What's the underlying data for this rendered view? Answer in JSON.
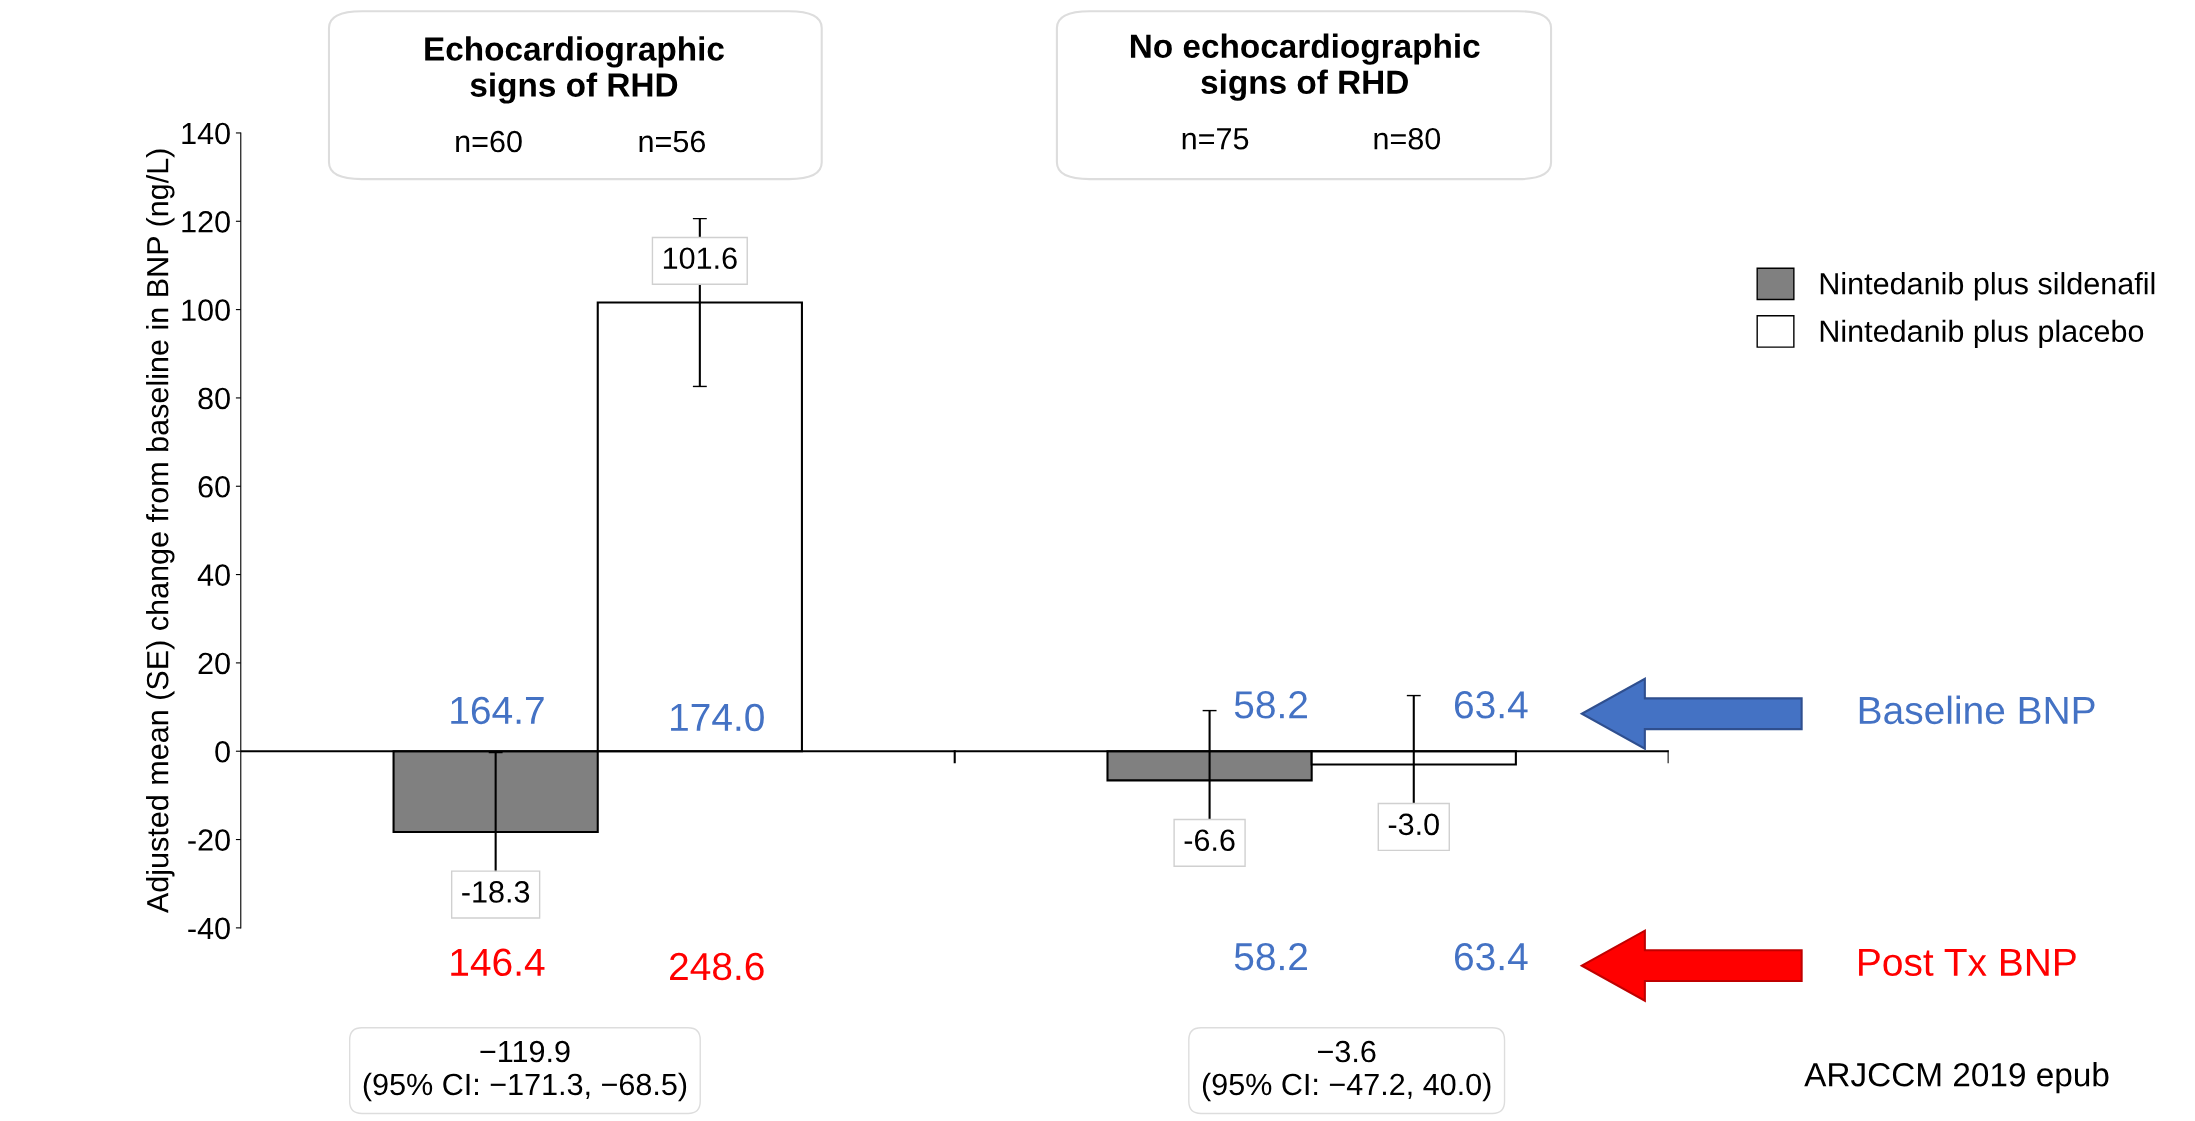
{
  "chart_data": {
    "type": "bar",
    "ylabel": "Adjusted mean (SE) change from baseline in BNP (ng/L)",
    "categories": [
      "Echocardiographic\nsigns of RHD",
      "No echocardiographic\nsigns of RHD"
    ],
    "series": [
      {
        "name": "Nintedanib plus sildenafil",
        "color": "#808080",
        "values": [
          -18.3,
          -6.6
        ],
        "value_labels": [
          "-18.3",
          "-6.6"
        ],
        "errors": [
          18,
          15.8
        ]
      },
      {
        "name": "Nintedanib plus placebo",
        "color": "#ffffff",
        "values": [
          101.6,
          -3.0
        ],
        "value_labels": [
          "101.6",
          "-3.0"
        ],
        "errors": [
          19,
          15.6
        ]
      }
    ],
    "ylim": [
      -40,
      140
    ],
    "yticks": [
      -40,
      -20,
      0,
      20,
      40,
      60,
      80,
      100,
      120,
      140
    ],
    "legend": "top right",
    "annotations": [
      "n=60",
      "n=56",
      "n=75",
      "n=80",
      "164.7",
      "174.0",
      "58.2",
      "63.4",
      "Baseline BNP",
      "146.4",
      "248.6",
      "58.2",
      "63.4",
      "Post Tx BNP",
      "−119.9\n(95% CI: −171.3, −68.5)",
      "−3.6\n(95% CI: −47.2, 40.0)",
      "ARJCCM 2019 epub"
    ]
  }
}
